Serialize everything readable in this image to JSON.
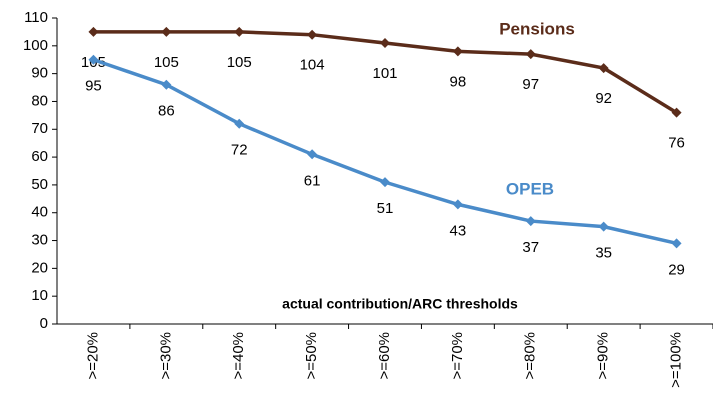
{
  "chart_data": {
    "type": "line",
    "x_label": "actual contribution/ARC thresholds",
    "categories": [
      ">=20%",
      ">=30%",
      ">=40%",
      ">=50%",
      ">=60%",
      ">=70%",
      ">=80%",
      ">=90%",
      ">=100%"
    ],
    "series": [
      {
        "name": "Pensions",
        "color": "#5b2c1a",
        "values": [
          105,
          105,
          105,
          104,
          101,
          98,
          97,
          92,
          76
        ]
      },
      {
        "name": "OPEB",
        "color": "#4a8bc9",
        "values": [
          95,
          86,
          72,
          61,
          51,
          43,
          37,
          35,
          29
        ]
      }
    ],
    "ylim": [
      0,
      110
    ],
    "yticks": [
      0,
      10,
      20,
      30,
      40,
      50,
      60,
      70,
      80,
      90,
      100,
      110
    ],
    "grid": false
  }
}
